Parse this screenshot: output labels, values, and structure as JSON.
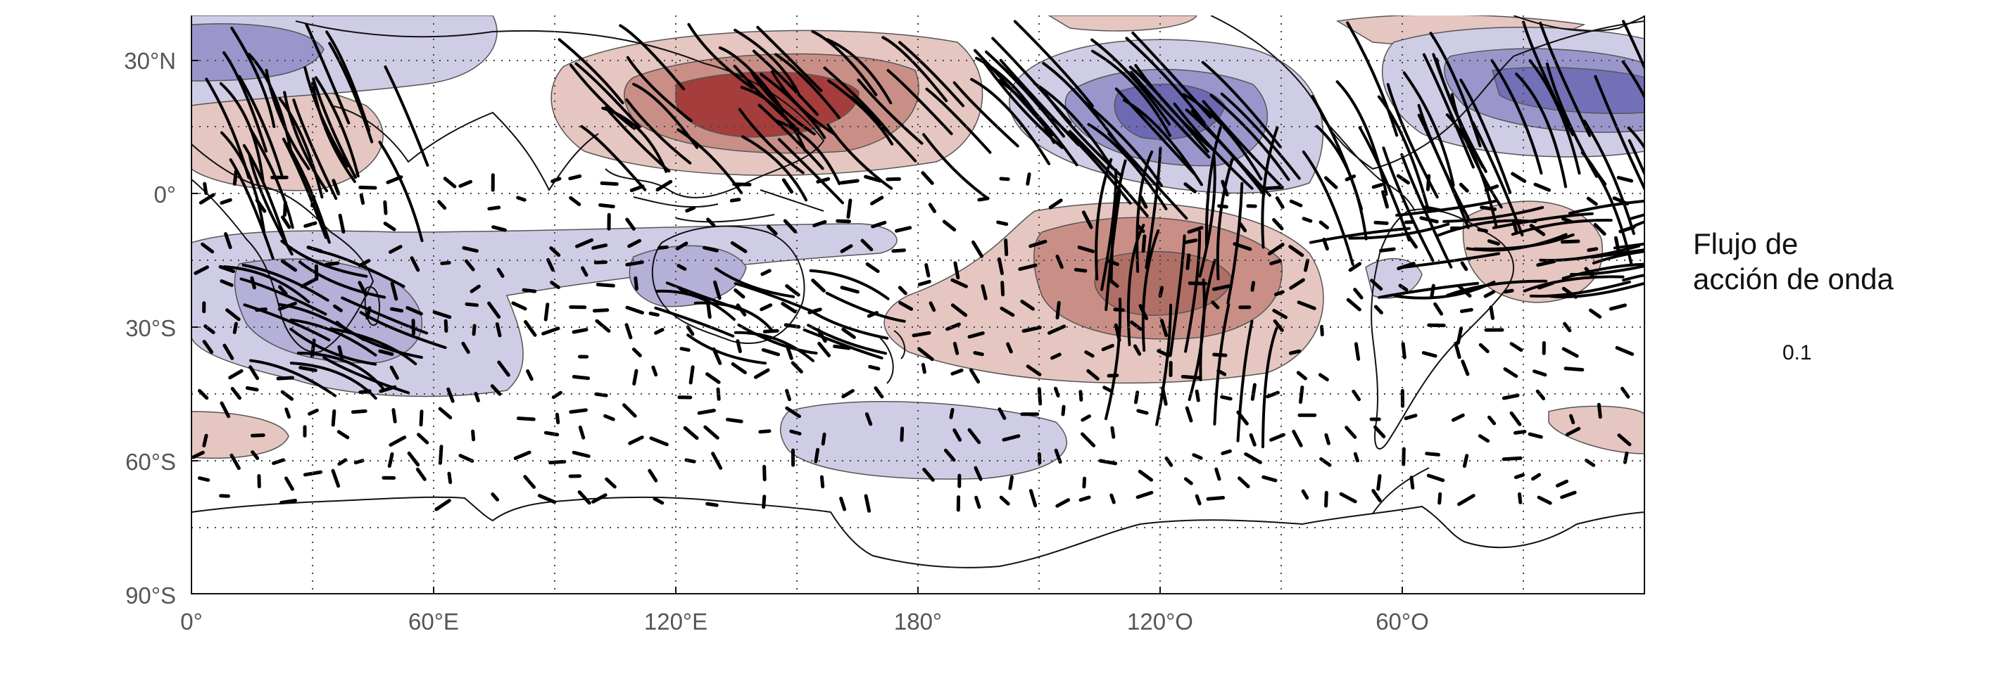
{
  "map": {
    "lat_labels": [
      "30°N",
      "0°",
      "30°S",
      "60°S",
      "90°S"
    ],
    "lon_labels": [
      "0°",
      "60°E",
      "120°E",
      "180°",
      "120°O",
      "60°O"
    ],
    "lat_values": [
      30,
      0,
      -30,
      -60,
      -90
    ],
    "lon_values": [
      0,
      60,
      120,
      180,
      240,
      300
    ],
    "extent": {
      "lon": [
        0,
        360
      ],
      "lat": [
        -90,
        40
      ]
    },
    "grid": "dotted",
    "colors": {
      "positive_strong": "#9e2f2f",
      "positive_mid": "#c98f86",
      "positive_weak": "#e6c6c1",
      "negative_strong": "#5a56a8",
      "negative_mid": "#9a96cc",
      "negative_weak": "#cfcde6",
      "vector": "#000000"
    }
  },
  "legend": {
    "title_line1": "Flujo de",
    "title_line2": "acción de onda",
    "reference_value": "0.1"
  }
}
